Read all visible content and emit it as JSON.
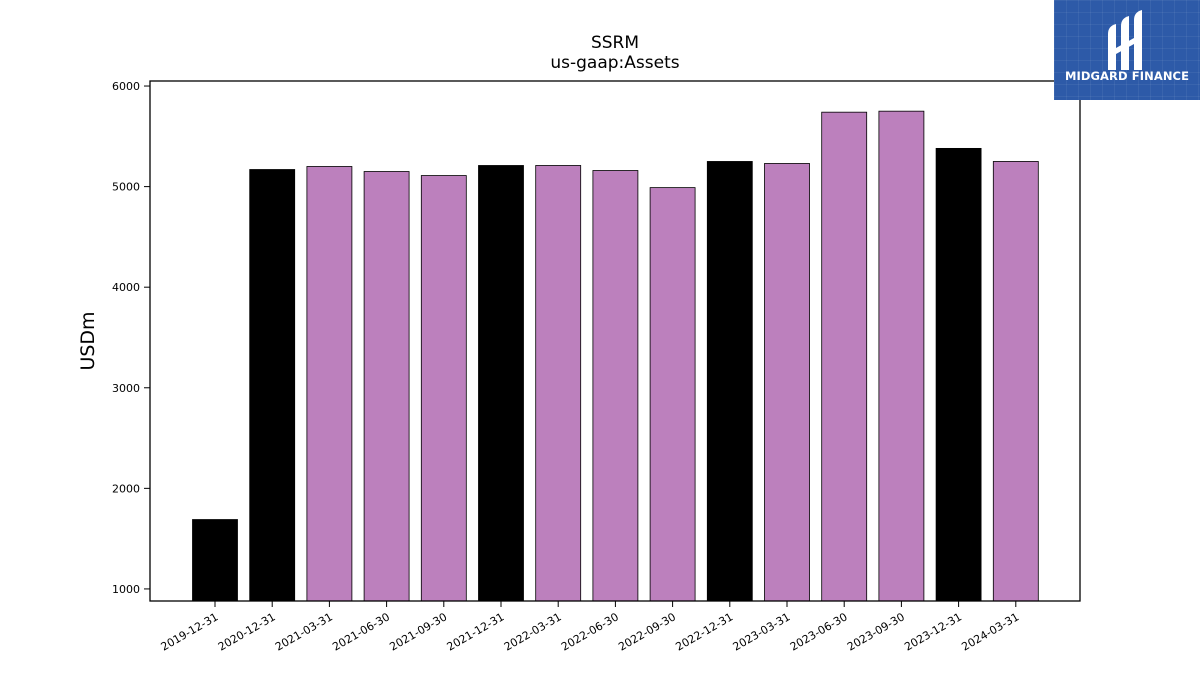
{
  "chart_data": {
    "type": "bar",
    "title": "SSRM",
    "subtitle": "us-gaap:Assets",
    "xlabel": "",
    "ylabel": "USDm",
    "ylim": [
      880,
      6050
    ],
    "yticks": [
      1000,
      2000,
      3000,
      4000,
      5000,
      6000
    ],
    "grid": false,
    "categories": [
      "2019-12-31",
      "2020-12-31",
      "2021-03-31",
      "2021-06-30",
      "2021-09-30",
      "2021-12-31",
      "2022-03-31",
      "2022-06-30",
      "2022-09-30",
      "2022-12-31",
      "2023-03-31",
      "2023-06-30",
      "2023-09-30",
      "2023-12-31",
      "2024-03-31"
    ],
    "values": [
      1690,
      5170,
      5200,
      5150,
      5110,
      5210,
      5210,
      5160,
      4990,
      5250,
      5230,
      5740,
      5750,
      5380,
      5250
    ],
    "period_type": [
      "annual",
      "annual",
      "quarterly",
      "quarterly",
      "quarterly",
      "annual",
      "quarterly",
      "quarterly",
      "quarterly",
      "annual",
      "quarterly",
      "quarterly",
      "quarterly",
      "annual",
      "quarterly"
    ],
    "colors": {
      "annual": "#000000",
      "quarterly": "#bc80bd",
      "edge": "#000000"
    }
  },
  "logo": {
    "text": "MIDGARD FINANCE",
    "icon": "midgard-logo-icon",
    "background": "#2d5aa8"
  }
}
